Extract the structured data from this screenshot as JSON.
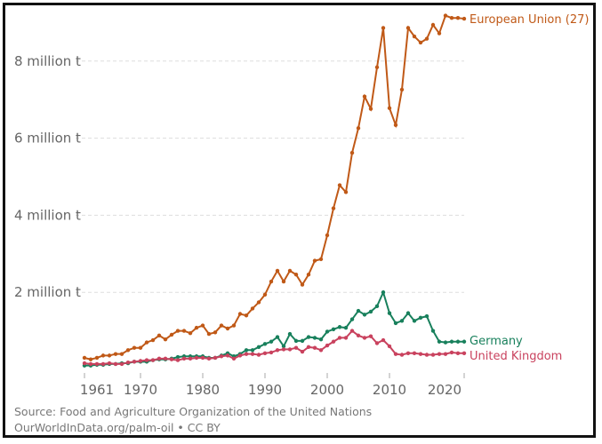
{
  "chart_data": {
    "type": "line",
    "title": "",
    "xlabel": "",
    "ylabel": "",
    "xlim": [
      1961,
      2022
    ],
    "ylim": [
      0,
      9000000
    ],
    "grid": "horizontal-dashed",
    "y_ticks": [
      {
        "value": 2000000,
        "label": "2 million t"
      },
      {
        "value": 4000000,
        "label": "4 million t"
      },
      {
        "value": 6000000,
        "label": "6 million t"
      },
      {
        "value": 8000000,
        "label": "8 million t"
      }
    ],
    "x_ticks": [
      {
        "value": 1961,
        "label": "1961"
      },
      {
        "value": 1970,
        "label": "1970"
      },
      {
        "value": 1980,
        "label": "1980"
      },
      {
        "value": 1990,
        "label": "1990"
      },
      {
        "value": 2000,
        "label": "2000"
      },
      {
        "value": 2010,
        "label": "2010"
      },
      {
        "value": 2020,
        "label": "2020"
      }
    ],
    "x": [
      1961,
      1962,
      1963,
      1964,
      1965,
      1966,
      1967,
      1968,
      1969,
      1970,
      1971,
      1972,
      1973,
      1974,
      1975,
      1976,
      1977,
      1978,
      1979,
      1980,
      1981,
      1982,
      1983,
      1984,
      1985,
      1986,
      1987,
      1988,
      1989,
      1990,
      1991,
      1992,
      1993,
      1994,
      1995,
      1996,
      1997,
      1998,
      1999,
      2000,
      2001,
      2002,
      2003,
      2004,
      2005,
      2006,
      2007,
      2008,
      2009,
      2010,
      2011,
      2012,
      2013,
      2014,
      2015,
      2016,
      2017,
      2018,
      2019,
      2020,
      2021,
      2022
    ],
    "series": [
      {
        "name": "European Union (27)",
        "label": "European Union (27)",
        "color": "#c05917",
        "values": [
          300000,
          260000,
          300000,
          360000,
          360000,
          400000,
          400000,
          500000,
          560000,
          560000,
          700000,
          760000,
          880000,
          780000,
          900000,
          1000000,
          1000000,
          940000,
          1080000,
          1140000,
          920000,
          960000,
          1140000,
          1060000,
          1140000,
          1440000,
          1400000,
          1580000,
          1740000,
          1940000,
          2280000,
          2560000,
          2280000,
          2560000,
          2460000,
          2200000,
          2460000,
          2820000,
          2860000,
          3480000,
          4180000,
          4780000,
          4600000,
          5620000,
          6260000,
          7080000,
          6760000,
          7840000,
          8860000,
          6780000,
          6340000,
          7260000,
          8860000,
          8640000,
          8480000,
          8580000,
          8940000,
          8720000,
          9180000,
          9120000,
          9120000,
          9100000
        ]
      },
      {
        "name": "Germany",
        "label": "Germany",
        "color": "#18805c",
        "values": [
          100000,
          100000,
          120000,
          120000,
          140000,
          140000,
          160000,
          160000,
          200000,
          200000,
          200000,
          240000,
          260000,
          260000,
          280000,
          320000,
          340000,
          340000,
          340000,
          340000,
          300000,
          300000,
          360000,
          420000,
          340000,
          400000,
          500000,
          500000,
          580000,
          660000,
          720000,
          840000,
          600000,
          920000,
          740000,
          740000,
          840000,
          820000,
          780000,
          980000,
          1040000,
          1100000,
          1080000,
          1300000,
          1520000,
          1420000,
          1500000,
          1640000,
          2000000,
          1460000,
          1200000,
          1260000,
          1460000,
          1260000,
          1340000,
          1380000,
          1000000,
          720000,
          700000,
          720000,
          720000,
          720000
        ]
      },
      {
        "name": "United Kingdom",
        "label": "United Kingdom",
        "color": "#c9425e",
        "values": [
          160000,
          140000,
          140000,
          140000,
          160000,
          140000,
          140000,
          180000,
          200000,
          220000,
          240000,
          240000,
          280000,
          280000,
          260000,
          240000,
          280000,
          280000,
          300000,
          300000,
          280000,
          300000,
          340000,
          360000,
          280000,
          360000,
          400000,
          400000,
          380000,
          420000,
          440000,
          500000,
          520000,
          520000,
          560000,
          460000,
          580000,
          560000,
          500000,
          620000,
          720000,
          820000,
          820000,
          1000000,
          880000,
          820000,
          860000,
          680000,
          760000,
          600000,
          400000,
          380000,
          420000,
          420000,
          400000,
          380000,
          380000,
          400000,
          400000,
          440000,
          420000,
          420000
        ]
      }
    ]
  },
  "footer": {
    "source": "Source: Food and Agriculture Organization of the United Nations",
    "credit": "OurWorldInData.org/palm-oil • CC BY"
  }
}
